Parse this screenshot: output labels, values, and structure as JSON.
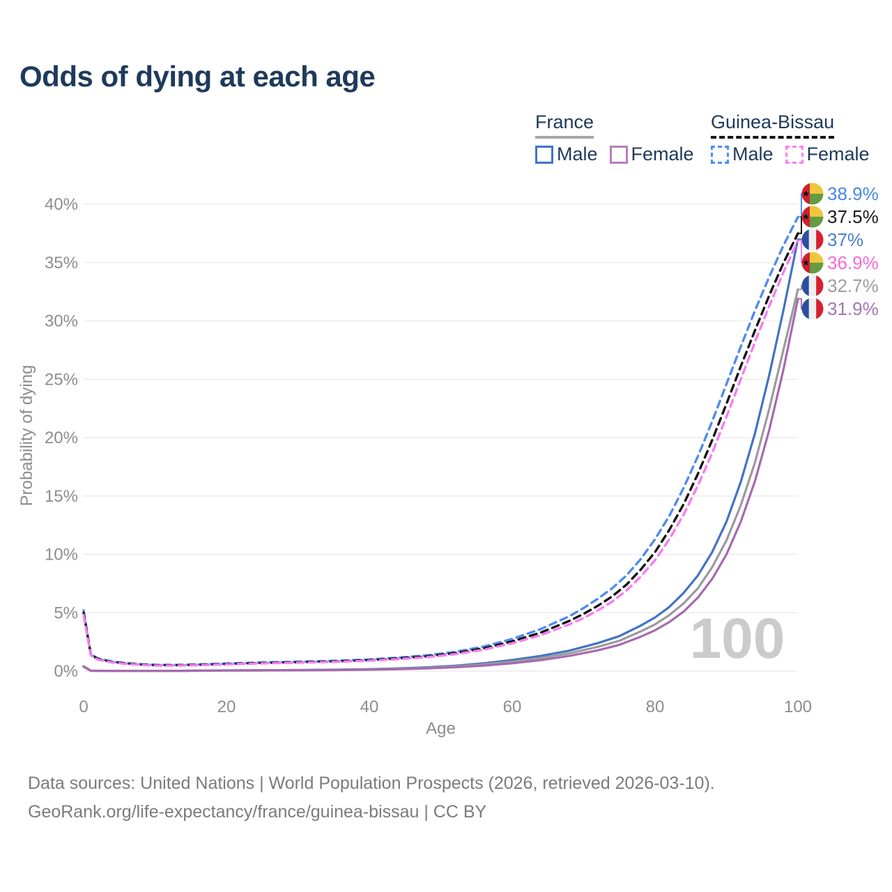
{
  "title": "Odds of dying at each age",
  "watermark": "100",
  "legend": {
    "groups": [
      {
        "name": "France",
        "underline_style": "solid",
        "underline_color": "#a6a6a6",
        "items": [
          {
            "label": "Male",
            "color": "#4273c4",
            "dash": false
          },
          {
            "label": "Female",
            "color": "#b67fba",
            "dash": false
          }
        ]
      },
      {
        "name": "Guinea-Bissau",
        "underline_style": "dashed",
        "underline_color": "#141414",
        "items": [
          {
            "label": "Male",
            "color": "#4e8bf5",
            "dash": true
          },
          {
            "label": "Female",
            "color": "#fc80f0",
            "dash": true
          }
        ]
      }
    ]
  },
  "axes": {
    "y_title": "Probability of dying",
    "x_title": "Age",
    "y_ticks": [
      {
        "label": "40%",
        "value": 40
      },
      {
        "label": "35%",
        "value": 35
      },
      {
        "label": "30%",
        "value": 30
      },
      {
        "label": "25%",
        "value": 25
      },
      {
        "label": "20%",
        "value": 20
      },
      {
        "label": "15%",
        "value": 15
      },
      {
        "label": "10%",
        "value": 10
      },
      {
        "label": "5%",
        "value": 5
      },
      {
        "label": "0%",
        "value": 0
      }
    ],
    "x_ticks": [
      {
        "label": "0",
        "value": 0
      },
      {
        "label": "20",
        "value": 20
      },
      {
        "label": "40",
        "value": 40
      },
      {
        "label": "60",
        "value": 60
      },
      {
        "label": "80",
        "value": 80
      },
      {
        "label": "100",
        "value": 100
      }
    ]
  },
  "chart_data": {
    "type": "line",
    "title": "Odds of dying at each age",
    "xlabel": "Age",
    "ylabel": "Probability of dying",
    "xlim": [
      0,
      100
    ],
    "ylim": [
      0,
      40
    ],
    "grid": "horizontal-only",
    "legend_position": "top-right",
    "series": [
      {
        "name": "France Male",
        "country": "France",
        "sex": "Male",
        "flag": "fr",
        "color": "#4273c4",
        "label_color": "#4a7fd0",
        "dash": false,
        "end_value": 37.0,
        "end_label": "37%",
        "label_slot": 2,
        "points": [
          [
            0,
            0.42
          ],
          [
            1,
            0.035
          ],
          [
            4,
            0.012
          ],
          [
            8,
            0.012
          ],
          [
            12,
            0.018
          ],
          [
            16,
            0.04
          ],
          [
            20,
            0.062
          ],
          [
            25,
            0.075
          ],
          [
            30,
            0.09
          ],
          [
            35,
            0.12
          ],
          [
            40,
            0.17
          ],
          [
            44,
            0.23
          ],
          [
            48,
            0.32
          ],
          [
            52,
            0.46
          ],
          [
            56,
            0.66
          ],
          [
            60,
            0.95
          ],
          [
            64,
            1.3
          ],
          [
            68,
            1.75
          ],
          [
            72,
            2.4
          ],
          [
            75,
            3.0
          ],
          [
            78,
            3.9
          ],
          [
            80,
            4.6
          ],
          [
            82,
            5.5
          ],
          [
            84,
            6.7
          ],
          [
            86,
            8.2
          ],
          [
            88,
            10.2
          ],
          [
            90,
            12.8
          ],
          [
            92,
            16.2
          ],
          [
            94,
            20.4
          ],
          [
            96,
            25.4
          ],
          [
            98,
            31.0
          ],
          [
            100,
            37.0
          ]
        ]
      },
      {
        "name": "France combined",
        "country": "France",
        "sex": "Both",
        "flag": "fr",
        "color": "#9b9b9b",
        "label_color": "#9e9e9e",
        "dash": false,
        "end_value": 32.7,
        "end_label": "32.7%",
        "label_slot": 4,
        "points": [
          [
            0,
            0.4
          ],
          [
            1,
            0.032
          ],
          [
            4,
            0.011
          ],
          [
            8,
            0.011
          ],
          [
            12,
            0.016
          ],
          [
            16,
            0.036
          ],
          [
            20,
            0.055
          ],
          [
            25,
            0.067
          ],
          [
            30,
            0.08
          ],
          [
            35,
            0.105
          ],
          [
            40,
            0.15
          ],
          [
            44,
            0.2
          ],
          [
            48,
            0.28
          ],
          [
            52,
            0.4
          ],
          [
            56,
            0.57
          ],
          [
            60,
            0.82
          ],
          [
            64,
            1.12
          ],
          [
            68,
            1.52
          ],
          [
            72,
            2.08
          ],
          [
            75,
            2.6
          ],
          [
            78,
            3.4
          ],
          [
            80,
            4.0
          ],
          [
            82,
            4.8
          ],
          [
            84,
            5.8
          ],
          [
            86,
            7.1
          ],
          [
            88,
            8.9
          ],
          [
            90,
            11.2
          ],
          [
            92,
            14.2
          ],
          [
            94,
            17.9
          ],
          [
            96,
            22.5
          ],
          [
            98,
            27.6
          ],
          [
            100,
            32.7
          ]
        ]
      },
      {
        "name": "France Female",
        "country": "France",
        "sex": "Female",
        "flag": "fr",
        "color": "#a669ae",
        "label_color": "#a873b5",
        "dash": false,
        "end_value": 31.9,
        "end_label": "31.9%",
        "label_slot": 5,
        "points": [
          [
            0,
            0.37
          ],
          [
            1,
            0.03
          ],
          [
            4,
            0.01
          ],
          [
            8,
            0.01
          ],
          [
            12,
            0.014
          ],
          [
            16,
            0.03
          ],
          [
            20,
            0.045
          ],
          [
            25,
            0.055
          ],
          [
            30,
            0.065
          ],
          [
            35,
            0.085
          ],
          [
            40,
            0.12
          ],
          [
            44,
            0.16
          ],
          [
            48,
            0.23
          ],
          [
            52,
            0.33
          ],
          [
            56,
            0.47
          ],
          [
            60,
            0.67
          ],
          [
            64,
            0.94
          ],
          [
            68,
            1.3
          ],
          [
            72,
            1.78
          ],
          [
            75,
            2.25
          ],
          [
            78,
            2.95
          ],
          [
            80,
            3.5
          ],
          [
            82,
            4.2
          ],
          [
            84,
            5.1
          ],
          [
            86,
            6.3
          ],
          [
            88,
            7.9
          ],
          [
            90,
            10.0
          ],
          [
            92,
            12.8
          ],
          [
            94,
            16.3
          ],
          [
            96,
            20.7
          ],
          [
            98,
            25.9
          ],
          [
            100,
            31.9
          ]
        ]
      },
      {
        "name": "Guinea-Bissau Male",
        "country": "Guinea-Bissau",
        "sex": "Male",
        "flag": "gw",
        "color": "#4f8bf0",
        "label_color": "#4a86e8",
        "dash": true,
        "end_value": 38.9,
        "end_label": "38.9%",
        "label_slot": 0,
        "points": [
          [
            0,
            5.2
          ],
          [
            1,
            1.45
          ],
          [
            2,
            1.08
          ],
          [
            4,
            0.82
          ],
          [
            6,
            0.68
          ],
          [
            8,
            0.59
          ],
          [
            10,
            0.54
          ],
          [
            13,
            0.53
          ],
          [
            16,
            0.57
          ],
          [
            20,
            0.65
          ],
          [
            25,
            0.74
          ],
          [
            30,
            0.8
          ],
          [
            35,
            0.88
          ],
          [
            40,
            1.0
          ],
          [
            44,
            1.15
          ],
          [
            48,
            1.35
          ],
          [
            52,
            1.65
          ],
          [
            56,
            2.1
          ],
          [
            60,
            2.75
          ],
          [
            64,
            3.6
          ],
          [
            68,
            4.7
          ],
          [
            70,
            5.4
          ],
          [
            72,
            6.2
          ],
          [
            74,
            7.1
          ],
          [
            76,
            8.2
          ],
          [
            78,
            9.6
          ],
          [
            80,
            11.3
          ],
          [
            82,
            13.3
          ],
          [
            84,
            15.7
          ],
          [
            86,
            18.4
          ],
          [
            88,
            21.4
          ],
          [
            90,
            24.6
          ],
          [
            92,
            27.8
          ],
          [
            94,
            30.9
          ],
          [
            96,
            33.8
          ],
          [
            98,
            36.5
          ],
          [
            100,
            38.9
          ]
        ]
      },
      {
        "name": "Guinea-Bissau combined",
        "country": "Guinea-Bissau",
        "sex": "Both",
        "flag": "gw",
        "color": "#141414",
        "label_color": "#1a1a1a",
        "dash": true,
        "end_value": 37.5,
        "end_label": "37.5%",
        "label_slot": 1,
        "points": [
          [
            0,
            5.0
          ],
          [
            1,
            1.4
          ],
          [
            2,
            1.03
          ],
          [
            4,
            0.78
          ],
          [
            6,
            0.65
          ],
          [
            8,
            0.56
          ],
          [
            10,
            0.51
          ],
          [
            13,
            0.5
          ],
          [
            16,
            0.54
          ],
          [
            20,
            0.61
          ],
          [
            25,
            0.7
          ],
          [
            30,
            0.76
          ],
          [
            35,
            0.83
          ],
          [
            40,
            0.94
          ],
          [
            44,
            1.08
          ],
          [
            48,
            1.26
          ],
          [
            52,
            1.54
          ],
          [
            56,
            1.95
          ],
          [
            60,
            2.55
          ],
          [
            64,
            3.3
          ],
          [
            68,
            4.3
          ],
          [
            70,
            4.9
          ],
          [
            72,
            5.6
          ],
          [
            74,
            6.4
          ],
          [
            76,
            7.4
          ],
          [
            78,
            8.7
          ],
          [
            80,
            10.2
          ],
          [
            82,
            12.1
          ],
          [
            84,
            14.3
          ],
          [
            86,
            16.9
          ],
          [
            88,
            19.8
          ],
          [
            90,
            22.9
          ],
          [
            92,
            26.1
          ],
          [
            94,
            29.2
          ],
          [
            96,
            32.2
          ],
          [
            98,
            35.0
          ],
          [
            100,
            37.5
          ]
        ]
      },
      {
        "name": "Guinea-Bissau Female",
        "country": "Guinea-Bissau",
        "sex": "Female",
        "flag": "gw",
        "color": "#f87cf0",
        "label_color": "#fa68d8",
        "dash": true,
        "end_value": 36.9,
        "end_label": "36.9%",
        "label_slot": 3,
        "points": [
          [
            0,
            4.8
          ],
          [
            1,
            1.33
          ],
          [
            2,
            0.98
          ],
          [
            4,
            0.74
          ],
          [
            6,
            0.61
          ],
          [
            8,
            0.53
          ],
          [
            10,
            0.48
          ],
          [
            13,
            0.47
          ],
          [
            16,
            0.51
          ],
          [
            20,
            0.58
          ],
          [
            25,
            0.66
          ],
          [
            30,
            0.72
          ],
          [
            35,
            0.79
          ],
          [
            40,
            0.89
          ],
          [
            44,
            1.02
          ],
          [
            48,
            1.19
          ],
          [
            52,
            1.45
          ],
          [
            56,
            1.83
          ],
          [
            60,
            2.38
          ],
          [
            64,
            3.08
          ],
          [
            68,
            4.0
          ],
          [
            70,
            4.55
          ],
          [
            72,
            5.2
          ],
          [
            74,
            5.95
          ],
          [
            76,
            6.9
          ],
          [
            78,
            8.1
          ],
          [
            80,
            9.5
          ],
          [
            82,
            11.3
          ],
          [
            84,
            13.4
          ],
          [
            86,
            15.9
          ],
          [
            88,
            18.7
          ],
          [
            90,
            21.8
          ],
          [
            92,
            25.0
          ],
          [
            94,
            28.2
          ],
          [
            96,
            31.3
          ],
          [
            98,
            34.2
          ],
          [
            100,
            36.9
          ]
        ]
      }
    ]
  },
  "footer": {
    "line1": "Data sources: United Nations | World Population Prospects (2026, retrieved 2026-03-10).",
    "line2": "GeoRank.org/life-expectancy/france/guinea-bissau | CC BY"
  },
  "colors": {
    "title_text": "#1e3a5c",
    "tick_text": "#8d8d8d",
    "gridline": "#ececec",
    "watermark": "#cbcbcb",
    "footer_text": "#7b7b7b"
  }
}
